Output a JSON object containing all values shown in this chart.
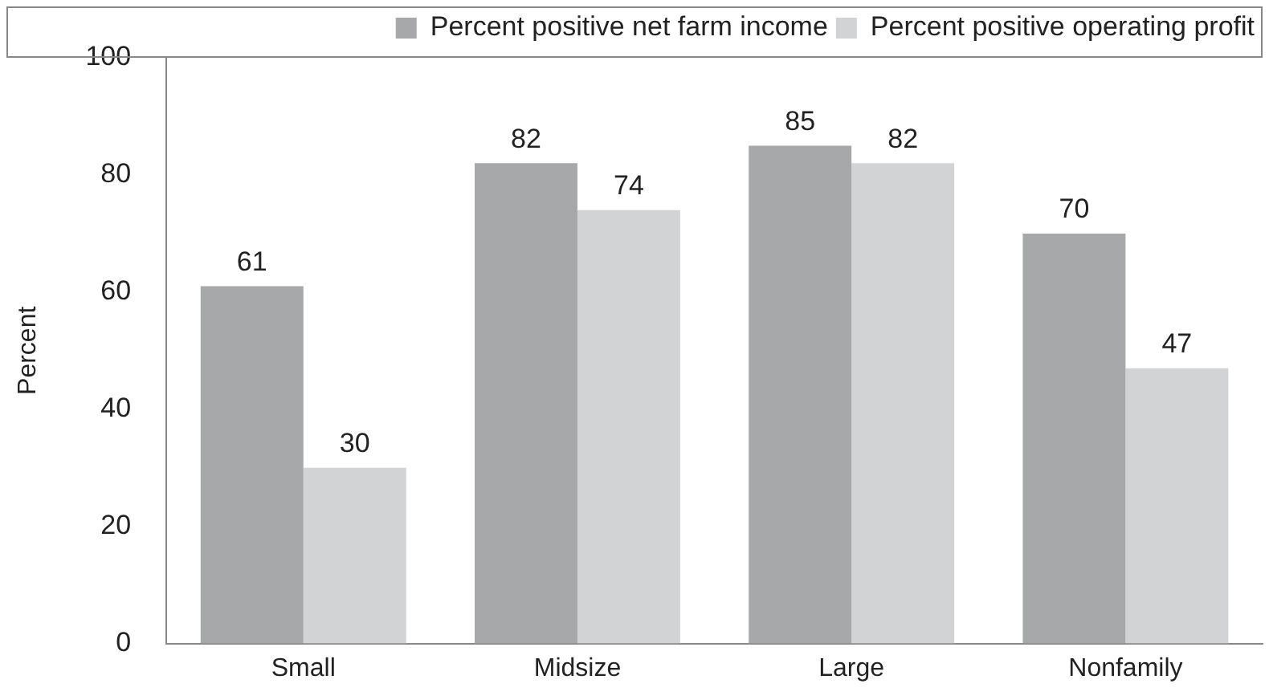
{
  "chart_data": {
    "type": "bar",
    "ylabel": "Percent",
    "categories": [
      "Small",
      "Midsize",
      "Large",
      "Nonfamily"
    ],
    "series": [
      {
        "name": "Percent positive net farm income",
        "color": "#a7a8aa",
        "values": [
          61,
          82,
          85,
          70
        ]
      },
      {
        "name": "Percent positive operating profit",
        "color": "#d2d3d5",
        "values": [
          30,
          74,
          82,
          47
        ]
      }
    ],
    "ylim": [
      0,
      100
    ],
    "yticks": [
      0,
      20,
      40,
      60,
      80,
      100
    ],
    "grid": false,
    "legend": "top right",
    "data_labels": true
  }
}
